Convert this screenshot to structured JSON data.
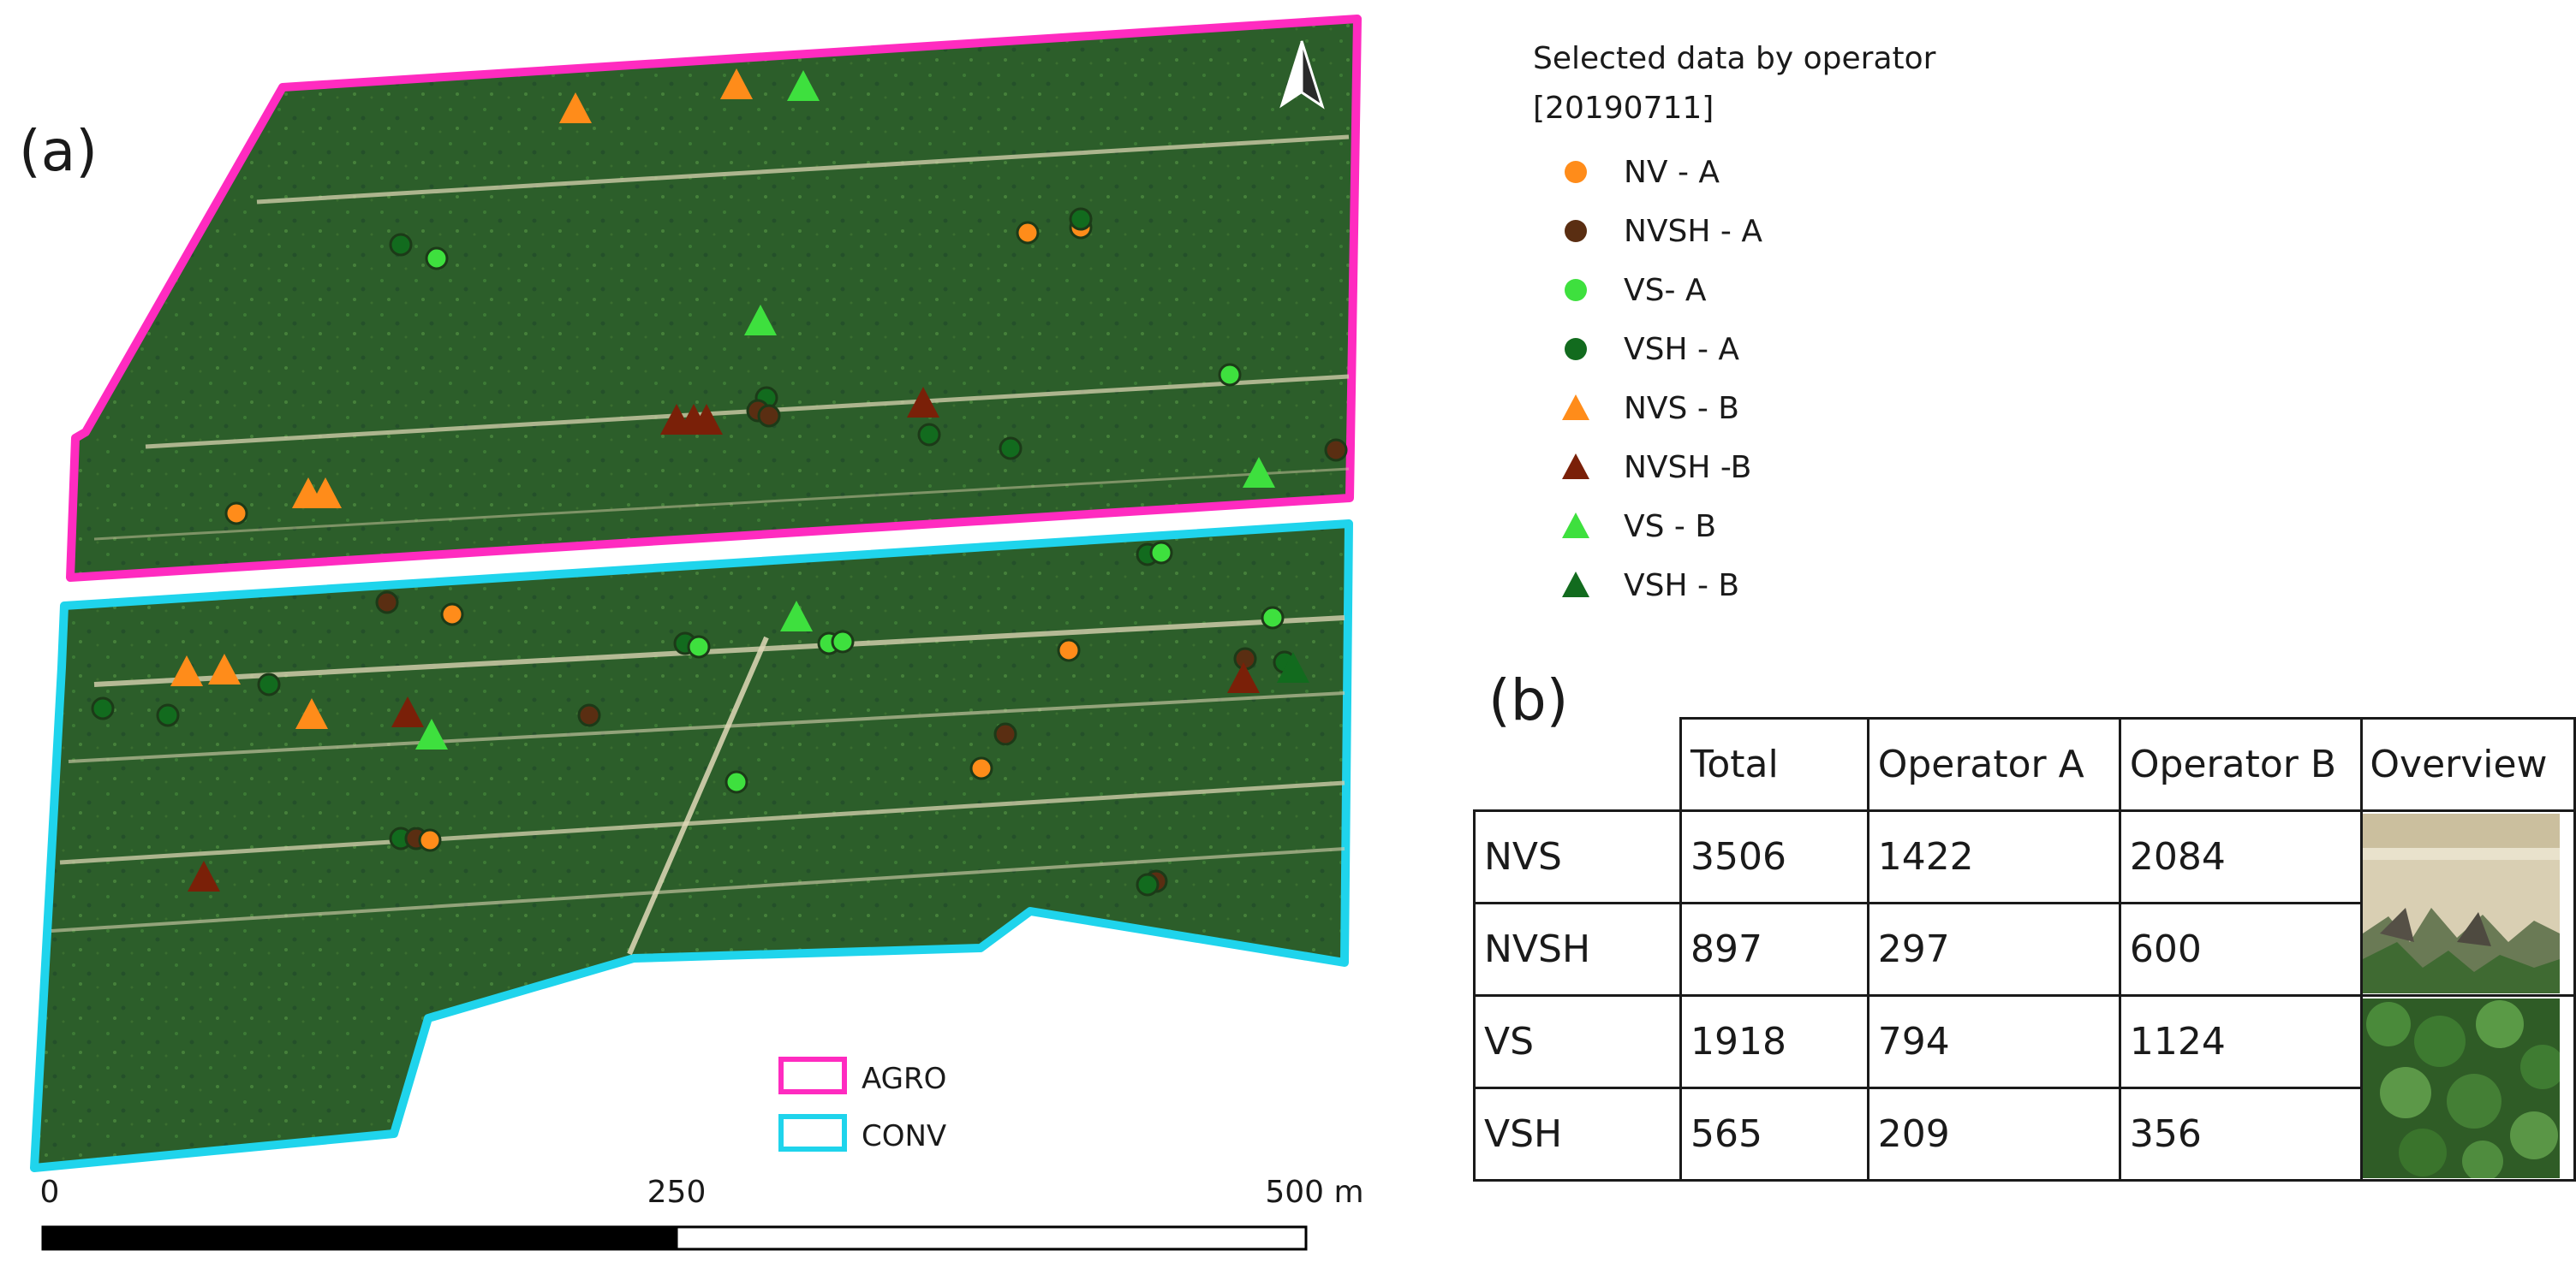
{
  "panel_a_label": "(a)",
  "panel_b_label": "(b)",
  "legend": {
    "title_line1": "Selected data by operator",
    "title_line2": "[20190711]",
    "items": [
      {
        "label": "NV - A",
        "shape": "circle",
        "color": "#ff8c1a"
      },
      {
        "label": "NVSH - A",
        "shape": "circle",
        "color": "#5a2e12"
      },
      {
        "label": "VS- A",
        "shape": "circle",
        "color": "#3ee03e"
      },
      {
        "label": "VSH - A",
        "shape": "circle",
        "color": "#126b1e"
      },
      {
        "label": "NVS - B",
        "shape": "triangle",
        "color": "#ff8c1a"
      },
      {
        "label": "NVSH -B",
        "shape": "triangle",
        "color": "#7a2008"
      },
      {
        "label": "VS - B",
        "shape": "triangle",
        "color": "#3ee03e"
      },
      {
        "label": "VSH - B",
        "shape": "triangle",
        "color": "#126b1e"
      }
    ]
  },
  "boundaries": [
    {
      "label": "AGRO",
      "color": "#ff2bc0"
    },
    {
      "label": "CONV",
      "color": "#1fd4ec"
    }
  ],
  "scale_bar": {
    "labels": [
      "0",
      "250",
      "500 m"
    ]
  },
  "north_arrow_label": "north-arrow",
  "table": {
    "headers": [
      "Total",
      "Operator A",
      "Operator B",
      "Overview"
    ],
    "rows": [
      {
        "label": "NVS",
        "total": "3506",
        "a": "1422",
        "b": "2084"
      },
      {
        "label": "NVSH",
        "total": "897",
        "a": "297",
        "b": "600"
      },
      {
        "label": "VS",
        "total": "1918",
        "a": "794",
        "b": "1124"
      },
      {
        "label": "VSH",
        "total": "565",
        "a": "209",
        "b": "356"
      }
    ]
  },
  "colors": {
    "field_green": "#2c5e2a",
    "stripe": "#d8d2b0",
    "agro_border": "#ff2bc0",
    "conv_border": "#1fd4ec"
  }
}
